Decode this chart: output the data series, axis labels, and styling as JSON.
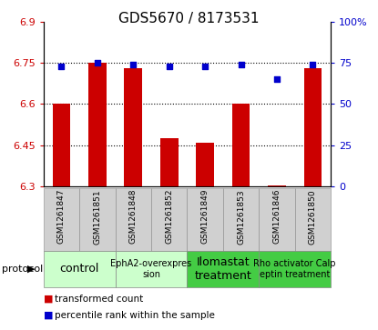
{
  "title": "GDS5670 / 8173531",
  "samples": [
    "GSM1261847",
    "GSM1261851",
    "GSM1261848",
    "GSM1261852",
    "GSM1261849",
    "GSM1261853",
    "GSM1261846",
    "GSM1261850"
  ],
  "bar_values": [
    6.6,
    6.75,
    6.73,
    6.475,
    6.46,
    6.6,
    6.305,
    6.73
  ],
  "dot_values": [
    73,
    75,
    74,
    73,
    73,
    74,
    65,
    74
  ],
  "ylim_left": [
    6.3,
    6.9
  ],
  "ylim_right": [
    0,
    100
  ],
  "yticks_left": [
    6.3,
    6.45,
    6.6,
    6.75,
    6.9
  ],
  "yticks_right": [
    0,
    25,
    50,
    75,
    100
  ],
  "ytick_labels_left": [
    "6.3",
    "6.45",
    "6.6",
    "6.75",
    "6.9"
  ],
  "ytick_labels_right": [
    "0",
    "25",
    "50",
    "75",
    "100%"
  ],
  "hlines": [
    6.45,
    6.6,
    6.75
  ],
  "bar_color": "#cc0000",
  "dot_color": "#0000cc",
  "bar_width": 0.5,
  "groups": [
    {
      "label": "control",
      "indices": [
        0,
        1
      ],
      "color": "#ccffcc",
      "fontsize": 9
    },
    {
      "label": "EphA2-overexpres\nsion",
      "indices": [
        2,
        3
      ],
      "color": "#ccffcc",
      "fontsize": 7
    },
    {
      "label": "Ilomastat\ntreatment",
      "indices": [
        4,
        5
      ],
      "color": "#44cc44",
      "fontsize": 9
    },
    {
      "label": "Rho activator Calp\neptin treatment",
      "indices": [
        6,
        7
      ],
      "color": "#44cc44",
      "fontsize": 7
    }
  ],
  "protocol_label": "protocol",
  "legend_red": "transformed count",
  "legend_blue": "percentile rank within the sample",
  "bar_color_legend": "#cc0000",
  "dot_color_legend": "#0000cc",
  "tick_color_left": "#cc0000",
  "tick_color_right": "#0000cc",
  "title_fontsize": 11,
  "tick_fontsize": 8,
  "sample_fontsize": 6.5,
  "legend_fontsize": 7.5,
  "sample_bg_color": "#d0d0d0"
}
